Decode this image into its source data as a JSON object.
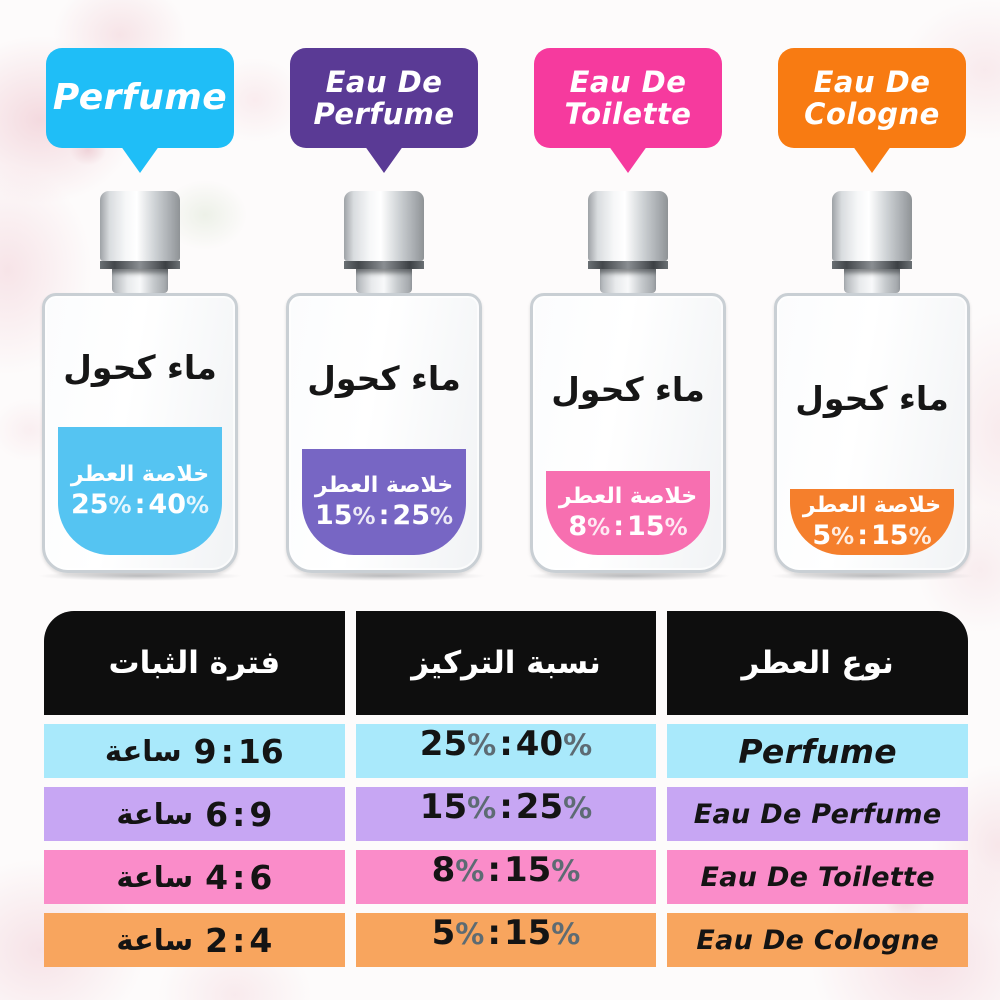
{
  "symbols": {
    "percent": "%",
    "colon": ":"
  },
  "bubbles": [
    {
      "line1": "Perfume",
      "line2": "",
      "color": "#1fbef7"
    },
    {
      "line1": "Eau De",
      "line2": "Perfume",
      "color": "#5a3a95"
    },
    {
      "line1": "Eau De",
      "line2": "Toilette",
      "color": "#f63a9e"
    },
    {
      "line1": "Eau De",
      "line2": "Cologne",
      "color": "#f87b12"
    }
  ],
  "bottles": [
    {
      "alcohol_label": "ماء كحول",
      "essence_label": "خلاصة العطر",
      "low": "25",
      "high": "40",
      "liquid_color": "#55c4f2",
      "fill": 128
    },
    {
      "alcohol_label": "ماء كحول",
      "essence_label": "خلاصة العطر",
      "low": "15",
      "high": "25",
      "liquid_color": "#7766c4",
      "fill": 106
    },
    {
      "alcohol_label": "ماء كحول",
      "essence_label": "خلاصة العطر",
      "low": "8",
      "high": "15",
      "liquid_color": "#f76fb0",
      "fill": 84
    },
    {
      "alcohol_label": "ماء كحول",
      "essence_label": "خلاصة العطر",
      "low": "5",
      "high": "15",
      "liquid_color": "#f57f2c",
      "fill": 66
    }
  ],
  "table": {
    "headers": {
      "duration": "فترة الثبات",
      "concentration": "نسبة التركيز",
      "type": "نوع العطر"
    },
    "header_color": "#0e0e0e",
    "rows": [
      {
        "name": "Perfume",
        "conc_low": "25",
        "conc_high": "40",
        "dur_low": "9",
        "dur_high": "16",
        "unit": "ساعة",
        "color": "#a9e9fb"
      },
      {
        "name": "Eau De Perfume",
        "conc_low": "15",
        "conc_high": "25",
        "dur_low": "6",
        "dur_high": "9",
        "unit": "ساعة",
        "color": "#c7a6f3"
      },
      {
        "name": "Eau De Toilette",
        "conc_low": "8",
        "conc_high": "15",
        "dur_low": "4",
        "dur_high": "6",
        "unit": "ساعة",
        "color": "#fa8cc9"
      },
      {
        "name": "Eau De Cologne",
        "conc_low": "5",
        "conc_high": "15",
        "dur_low": "2",
        "dur_high": "4",
        "unit": "ساعة",
        "color": "#f8a55e"
      }
    ]
  }
}
